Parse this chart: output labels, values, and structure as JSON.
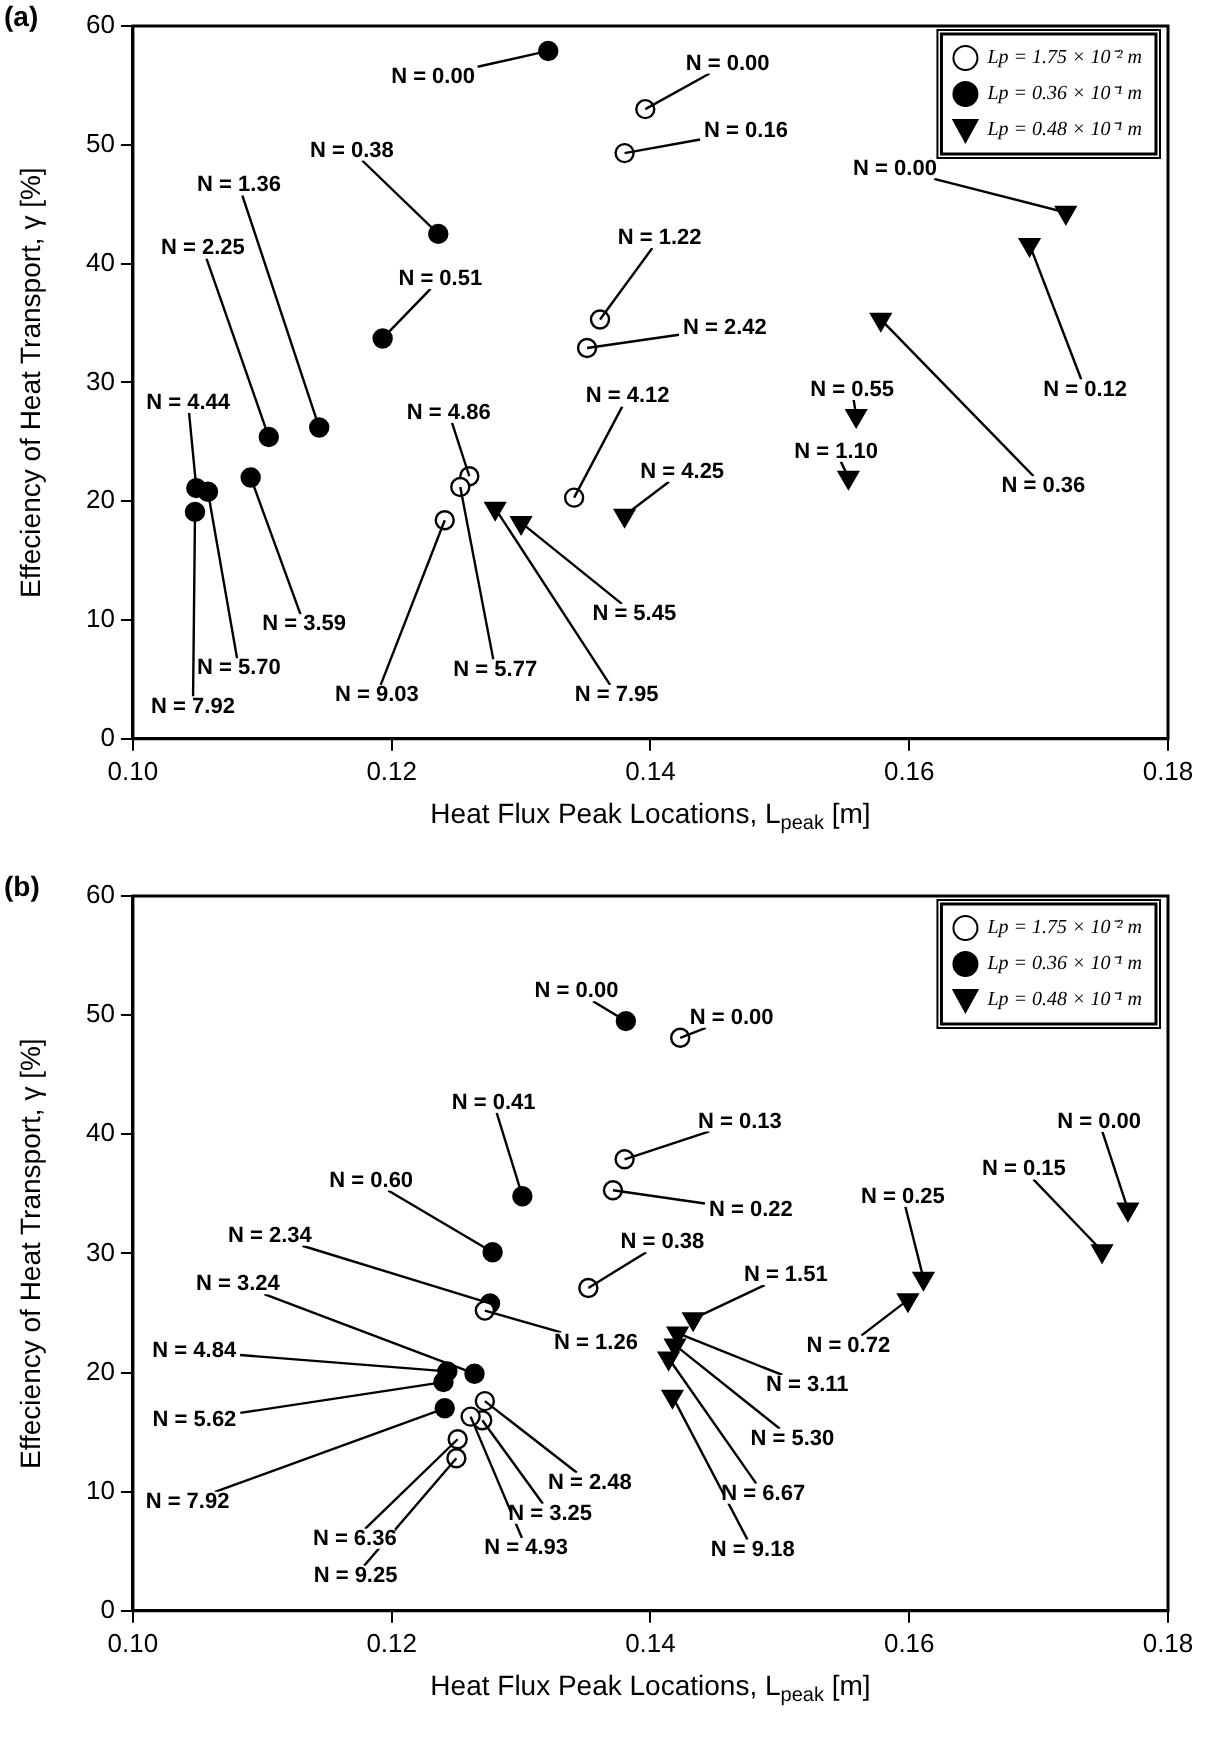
{
  "chart_data": [
    {
      "type": "scatter",
      "title": "(a)",
      "xlabel": "Heat Flux Peak Locations, L$_{peak}$ [m]",
      "ylabel": "Effeciency of Heat Transport, γ [%]",
      "xlim": [
        0.1,
        0.18
      ],
      "xticks": [
        {
          "value": 0.1,
          "label": "0.10"
        },
        {
          "value": 0.12,
          "label": "0.12"
        },
        {
          "value": 0.14,
          "label": "0.14"
        },
        {
          "value": 0.16,
          "label": "0.16"
        },
        {
          "value": 0.18,
          "label": "0.18"
        }
      ],
      "ylim": [
        0,
        60
      ],
      "yticks": [
        0,
        10,
        20,
        30,
        40,
        50,
        60
      ],
      "legend": "top right",
      "grid": false,
      "series": [
        {
          "name": "Lp = 1.75 × 10⁻² m",
          "color": "#ffffff",
          "marker": "circle",
          "x": [
            0.1396,
            0.138,
            0.1361,
            0.1351,
            0.1341,
            0.126,
            0.1253,
            0.1241
          ],
          "values": [
            53.0,
            49.3,
            35.3,
            32.9,
            20.3,
            22.1,
            21.2,
            18.4
          ]
        },
        {
          "name": "Lp = 0.36 × 10⁻¹ m",
          "color": "#000000",
          "marker": "circle",
          "x": [
            0.1321,
            0.1236,
            0.1193,
            0.1144,
            0.1105,
            0.1091,
            0.1049,
            0.1058,
            0.1048
          ],
          "values": [
            57.9,
            42.5,
            33.7,
            26.2,
            25.4,
            22.0,
            21.1,
            20.8,
            19.1
          ]
        },
        {
          "name": "Lp = 0.48 × 10⁻¹ m",
          "color": "#000000",
          "marker": "triangle",
          "x": [
            0.128,
            0.13,
            0.138,
            0.1559,
            0.1553,
            0.1578,
            0.1693,
            0.1721
          ],
          "values": [
            19.4,
            18.2,
            18.8,
            27.2,
            22.0,
            35.3,
            41.6,
            44.3
          ]
        }
      ],
      "annotations": [
        {
          "text": "N = 0.00",
          "x": 0.1396,
          "y": 53.0
        },
        {
          "text": "N = 0.16",
          "x": 0.138,
          "y": 49.3
        },
        {
          "text": "N = 1.22",
          "x": 0.1361,
          "y": 35.3
        },
        {
          "text": "N = 2.42",
          "x": 0.1351,
          "y": 32.9
        },
        {
          "text": "N = 4.12",
          "x": 0.1341,
          "y": 20.3
        },
        {
          "text": "N = 4.86",
          "x": 0.126,
          "y": 22.1
        },
        {
          "text": "N = 5.77",
          "x": 0.1253,
          "y": 21.2
        },
        {
          "text": "N = 9.03",
          "x": 0.1241,
          "y": 18.4
        },
        {
          "text": "N = 0.00",
          "x": 0.1321,
          "y": 57.9
        },
        {
          "text": "N = 0.38",
          "x": 0.1236,
          "y": 42.5
        },
        {
          "text": "N = 0.51",
          "x": 0.1193,
          "y": 33.7
        },
        {
          "text": "N = 1.36",
          "x": 0.1144,
          "y": 26.2
        },
        {
          "text": "N = 2.25",
          "x": 0.1105,
          "y": 25.4
        },
        {
          "text": "N = 3.59",
          "x": 0.1091,
          "y": 22.0
        },
        {
          "text": "N = 4.44",
          "x": 0.1049,
          "y": 21.1
        },
        {
          "text": "N = 5.70",
          "x": 0.1058,
          "y": 20.8
        },
        {
          "text": "N = 7.92",
          "x": 0.1048,
          "y": 19.1
        },
        {
          "text": "N = 7.95",
          "x": 0.128,
          "y": 19.4
        },
        {
          "text": "N = 5.45",
          "x": 0.13,
          "y": 18.2
        },
        {
          "text": "N = 4.25",
          "x": 0.138,
          "y": 18.8
        },
        {
          "text": "N = 0.55",
          "x": 0.1559,
          "y": 27.2
        },
        {
          "text": "N = 1.10",
          "x": 0.1553,
          "y": 22.0
        },
        {
          "text": "N = 0.36",
          "x": 0.1578,
          "y": 35.3
        },
        {
          "text": "N = 0.12",
          "x": 0.1693,
          "y": 41.6
        },
        {
          "text": "N = 0.00",
          "x": 0.1721,
          "y": 44.3
        }
      ]
    },
    {
      "type": "scatter",
      "title": "(b)",
      "xlabel": "Heat Flux Peak Locations, L$_{peak}$ [m]",
      "ylabel": "Effeciency of Heat Transport, γ [%]",
      "xlim": [
        0.1,
        0.18
      ],
      "xticks": [
        {
          "value": 0.1,
          "label": "0.10"
        },
        {
          "value": 0.12,
          "label": "0.12"
        },
        {
          "value": 0.14,
          "label": "0.14"
        },
        {
          "value": 0.16,
          "label": "0.16"
        },
        {
          "value": 0.18,
          "label": "0.18"
        }
      ],
      "ylim": [
        0,
        60
      ],
      "yticks": [
        0,
        10,
        20,
        30,
        40,
        50,
        60
      ],
      "legend": "top right",
      "grid": false,
      "series": [
        {
          "name": "Lp = 1.75 × 10⁻² m",
          "color": "#ffffff",
          "marker": "circle",
          "x": [
            0.1423,
            0.138,
            0.1371,
            0.1352,
            0.1272,
            0.1272,
            0.127,
            0.1261,
            0.1251,
            0.125
          ],
          "values": [
            48.1,
            37.9,
            35.3,
            27.1,
            25.2,
            17.6,
            16.0,
            16.3,
            14.4,
            12.8
          ]
        },
        {
          "name": "Lp = 0.36 × 10⁻¹ m",
          "color": "#000000",
          "marker": "circle",
          "x": [
            0.1381,
            0.1301,
            0.1278,
            0.1276,
            0.1264,
            0.1243,
            0.124,
            0.1241
          ],
          "values": [
            49.5,
            34.8,
            30.1,
            25.8,
            19.9,
            20.1,
            19.2,
            17.0
          ]
        },
        {
          "name": "Lp = 0.48 × 10⁻¹ m",
          "color": "#000000",
          "marker": "triangle",
          "x": [
            0.1433,
            0.1421,
            0.1419,
            0.1414,
            0.1417,
            0.1611,
            0.1599,
            0.1749,
            0.1769
          ],
          "values": [
            24.5,
            23.3,
            22.3,
            21.2,
            18.0,
            27.9,
            26.1,
            30.2,
            33.7
          ]
        }
      ],
      "annotations": [
        {
          "text": "N = 0.00",
          "x": 0.1423,
          "y": 48.1
        },
        {
          "text": "N = 0.13",
          "x": 0.138,
          "y": 37.9
        },
        {
          "text": "N = 0.22",
          "x": 0.1371,
          "y": 35.3
        },
        {
          "text": "N = 0.38",
          "x": 0.1352,
          "y": 27.1
        },
        {
          "text": "N = 1.26",
          "x": 0.1272,
          "y": 25.2
        },
        {
          "text": "N = 2.48",
          "x": 0.1272,
          "y": 17.6
        },
        {
          "text": "N = 3.25",
          "x": 0.127,
          "y": 16.0
        },
        {
          "text": "N = 4.93",
          "x": 0.1261,
          "y": 16.3
        },
        {
          "text": "N = 6.36",
          "x": 0.1251,
          "y": 14.4
        },
        {
          "text": "N = 9.25",
          "x": 0.125,
          "y": 12.8
        },
        {
          "text": "N = 0.00",
          "x": 0.1381,
          "y": 49.5
        },
        {
          "text": "N = 0.41",
          "x": 0.1301,
          "y": 34.8
        },
        {
          "text": "N = 0.60",
          "x": 0.1278,
          "y": 30.1
        },
        {
          "text": "N = 2.34",
          "x": 0.1276,
          "y": 25.8
        },
        {
          "text": "N = 3.24",
          "x": 0.1264,
          "y": 19.9
        },
        {
          "text": "N = 4.84",
          "x": 0.1243,
          "y": 20.1
        },
        {
          "text": "N = 5.62",
          "x": 0.124,
          "y": 19.2
        },
        {
          "text": "N = 7.92",
          "x": 0.1241,
          "y": 17.0
        },
        {
          "text": "N = 1.51",
          "x": 0.1433,
          "y": 24.5
        },
        {
          "text": "N = 3.11",
          "x": 0.1421,
          "y": 23.3
        },
        {
          "text": "N = 5.30",
          "x": 0.1419,
          "y": 22.3
        },
        {
          "text": "N = 6.67",
          "x": 0.1414,
          "y": 21.2
        },
        {
          "text": "N = 9.18",
          "x": 0.1417,
          "y": 18.0
        },
        {
          "text": "N = 0.25",
          "x": 0.1611,
          "y": 27.9
        },
        {
          "text": "N = 0.72",
          "x": 0.1599,
          "y": 26.1
        },
        {
          "text": "N = 0.15",
          "x": 0.1749,
          "y": 30.2
        },
        {
          "text": "N = 0.00",
          "x": 0.1769,
          "y": 33.7
        }
      ]
    }
  ]
}
